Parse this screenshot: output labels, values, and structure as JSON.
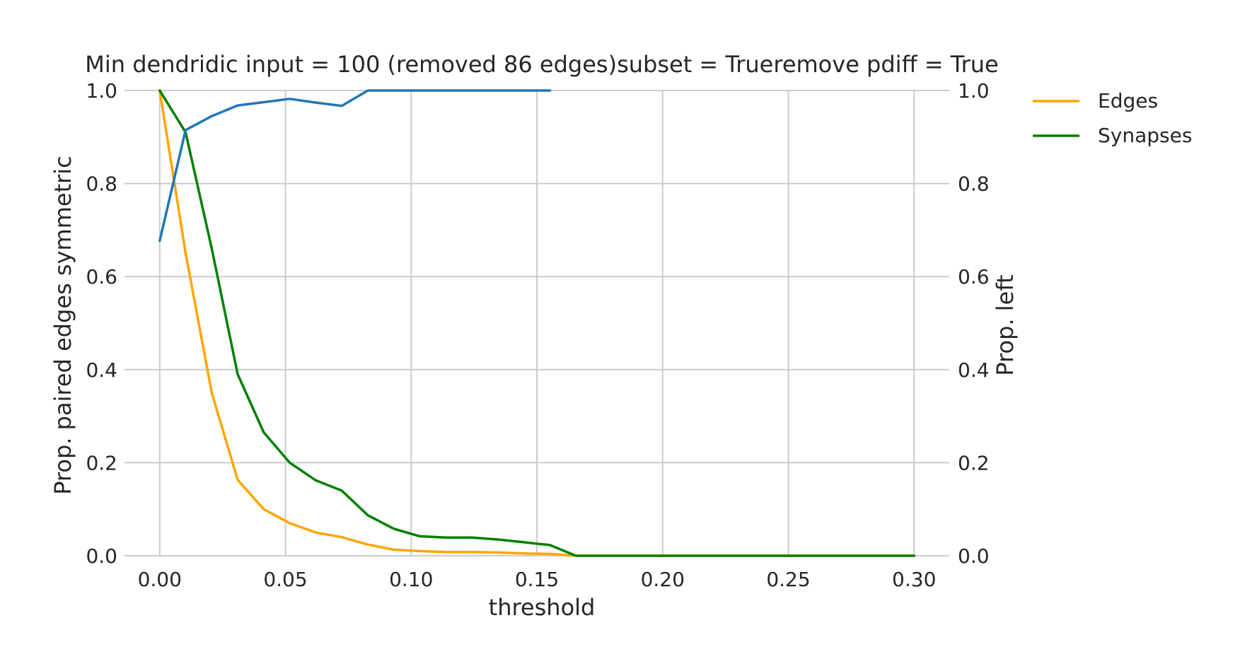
{
  "chart_data": {
    "type": "line",
    "title": "Min dendridic input = 100 (removed 86 edges)subset = Trueremove pdiff = True",
    "xlabel": "threshold",
    "ylabel": "Prop. paired edges symmetric",
    "ylabel_right": "Prop. left",
    "xlim": [
      -0.014,
      0.314
    ],
    "ylim": [
      0,
      1
    ],
    "ylim_right": [
      0,
      1
    ],
    "x_ticks": [
      "0.00",
      "0.05",
      "0.10",
      "0.15",
      "0.20",
      "0.25",
      "0.30"
    ],
    "y_ticks": [
      "0.0",
      "0.2",
      "0.4",
      "0.6",
      "0.8",
      "1.0"
    ],
    "y_ticks_right": [
      "0.0",
      "0.2",
      "0.4",
      "0.6",
      "0.8",
      "1.0"
    ],
    "grid": true,
    "legend_position": "outside-top-right",
    "series": [
      {
        "name": "Edges",
        "color": "#ffa500",
        "axis": "left",
        "x": [
          0.0,
          0.0103,
          0.0207,
          0.031,
          0.0414,
          0.0517,
          0.0621,
          0.0724,
          0.0828,
          0.0931,
          0.1034,
          0.1138,
          0.1241,
          0.1345,
          0.1448,
          0.1552,
          0.1655,
          0.1759,
          0.1862,
          0.1966,
          0.2069,
          0.2172,
          0.2276,
          0.2379,
          0.2483,
          0.2586,
          0.269,
          0.2793,
          0.2897,
          0.3
        ],
        "values": [
          1.0,
          0.65,
          0.35,
          0.163,
          0.1,
          0.07,
          0.05,
          0.04,
          0.024,
          0.013,
          0.01,
          0.008,
          0.008,
          0.007,
          0.005,
          0.004,
          0.0,
          0.0,
          0.0,
          0.0,
          0.0,
          0.0,
          0.0,
          0.0,
          0.0,
          0.0,
          0.0,
          0.0,
          0.0,
          0.0
        ]
      },
      {
        "name": "Synapses",
        "color": "#008000",
        "axis": "left",
        "x": [
          0.0,
          0.0103,
          0.0207,
          0.031,
          0.0414,
          0.0517,
          0.0621,
          0.0724,
          0.0828,
          0.0931,
          0.1034,
          0.1138,
          0.1241,
          0.1345,
          0.1448,
          0.1552,
          0.1655,
          0.1759,
          0.1862,
          0.1966,
          0.2069,
          0.2172,
          0.2276,
          0.2379,
          0.2483,
          0.2586,
          0.269,
          0.2793,
          0.2897,
          0.3
        ],
        "values": [
          1.0,
          0.91,
          0.66,
          0.39,
          0.265,
          0.2,
          0.162,
          0.14,
          0.087,
          0.058,
          0.042,
          0.039,
          0.039,
          0.035,
          0.029,
          0.023,
          0.0,
          0.0,
          0.0,
          0.0,
          0.0,
          0.0,
          0.0,
          0.0,
          0.0,
          0.0,
          0.0,
          0.0,
          0.0,
          0.0
        ]
      },
      {
        "color": "#1f77b4",
        "axis": "right",
        "x": [
          0.0,
          0.0103,
          0.0207,
          0.031,
          0.0414,
          0.0517,
          0.0621,
          0.0724,
          0.0828,
          0.0931,
          0.1034,
          0.1138,
          0.1241,
          0.1345,
          0.1448,
          0.1552
        ],
        "values": [
          0.677,
          0.915,
          0.945,
          0.968,
          0.975,
          0.982,
          0.974,
          0.967,
          1.0,
          1.0,
          1.0,
          1.0,
          1.0,
          1.0,
          1.0,
          1.0
        ]
      }
    ]
  }
}
